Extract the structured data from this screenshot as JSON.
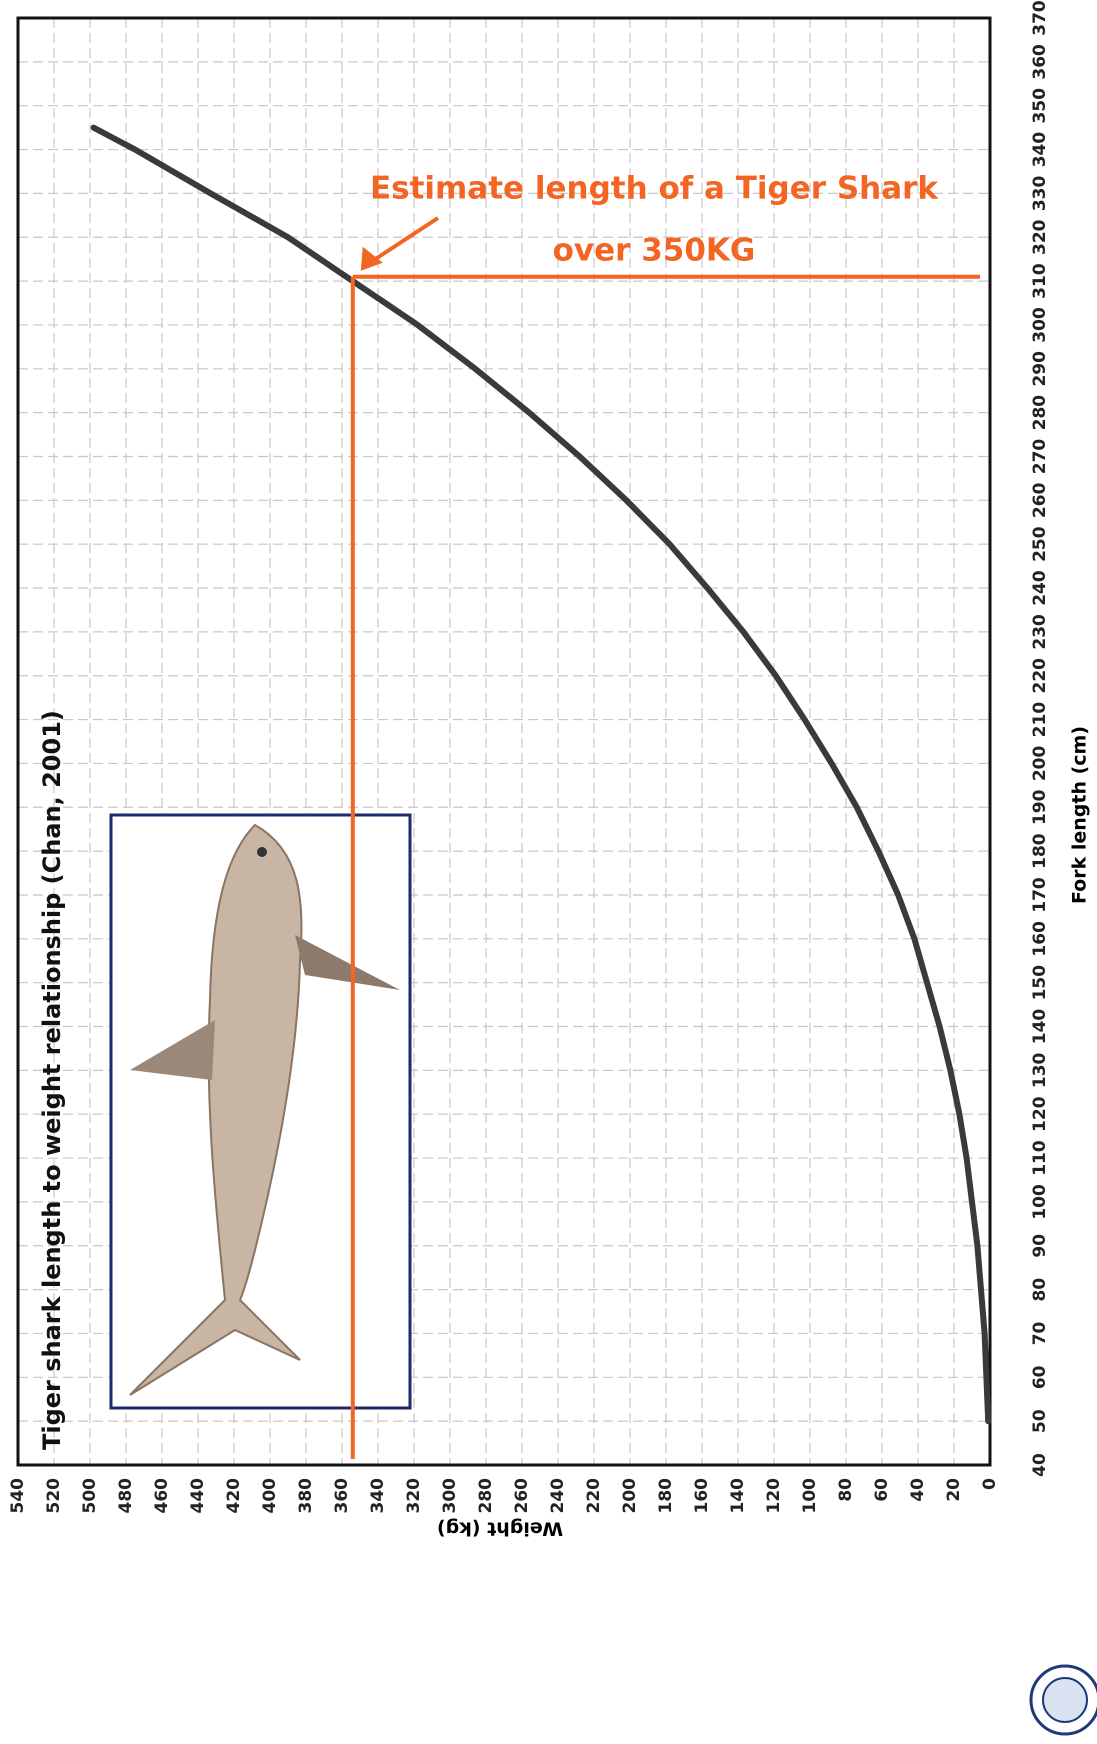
{
  "chart_data": {
    "type": "line",
    "title": "Tiger shark length to weight relationship (Chan, 2001)",
    "xlabel": "Fork length (cm)",
    "ylabel": "Weight (kg)",
    "x": [
      50,
      60,
      70,
      80,
      90,
      100,
      110,
      120,
      130,
      140,
      150,
      160,
      170,
      180,
      190,
      200,
      210,
      220,
      230,
      240,
      250,
      260,
      270,
      280,
      290,
      300,
      310,
      320,
      330,
      340,
      345
    ],
    "values": [
      1,
      2,
      3,
      5,
      7,
      10,
      13,
      17,
      22,
      28,
      35,
      42,
      51,
      62,
      74,
      88,
      103,
      119,
      137,
      157,
      178,
      202,
      228,
      256,
      286,
      318,
      354,
      390,
      433,
      475,
      498
    ],
    "color": "#3a3a3a",
    "xlim": [
      40,
      370
    ],
    "xticks": [
      40,
      50,
      60,
      70,
      80,
      90,
      100,
      110,
      120,
      130,
      140,
      150,
      160,
      170,
      180,
      190,
      200,
      210,
      220,
      230,
      240,
      250,
      260,
      270,
      280,
      290,
      300,
      310,
      320,
      330,
      340,
      350,
      360,
      370
    ],
    "ylim": [
      0,
      540
    ],
    "yticks": [
      0,
      20,
      40,
      60,
      80,
      100,
      120,
      140,
      160,
      180,
      200,
      220,
      240,
      260,
      280,
      300,
      320,
      340,
      360,
      380,
      400,
      420,
      440,
      460,
      480,
      500,
      520,
      540
    ],
    "grid": true,
    "annotation": {
      "text": [
        "Estimate length of a Tiger Shark",
        "over 350KG"
      ],
      "x": 311,
      "y": 354,
      "color": "#f26522"
    }
  }
}
